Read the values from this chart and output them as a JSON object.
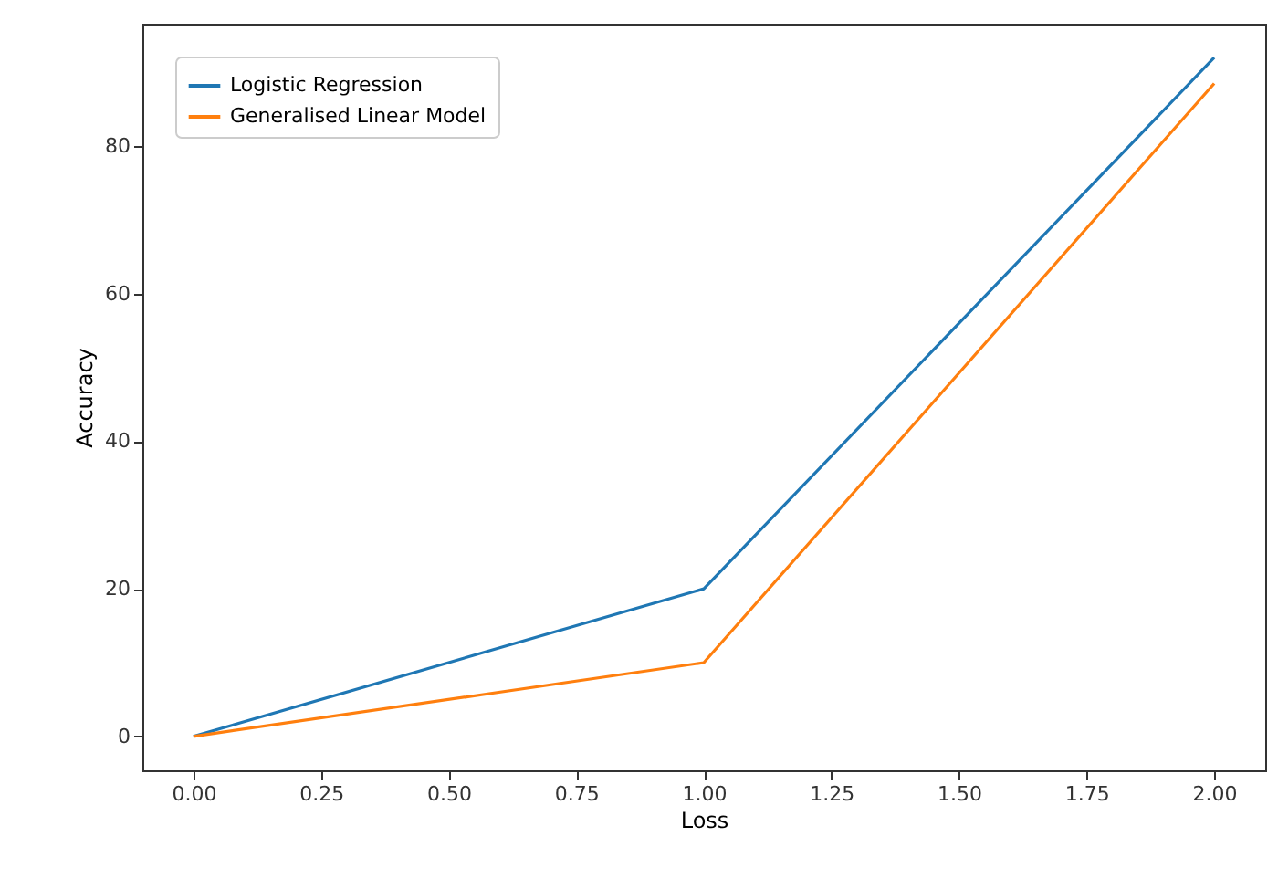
{
  "chart_data": {
    "type": "line",
    "xlabel": "Loss",
    "ylabel": "Accuracy",
    "x": [
      0,
      1,
      2
    ],
    "series": [
      {
        "name": "Logistic Regression",
        "color": "#1f77b4",
        "values": [
          0,
          20,
          92
        ]
      },
      {
        "name": "Generalised Linear Model",
        "color": "#ff7f0e",
        "values": [
          0,
          10,
          88.5
        ]
      }
    ],
    "xlim": [
      -0.1,
      2.1
    ],
    "xticks": [
      {
        "value": 0,
        "label": "0.00"
      },
      {
        "value": 0.25,
        "label": "0.25"
      },
      {
        "value": 0.5,
        "label": "0.50"
      },
      {
        "value": 0.75,
        "label": "0.75"
      },
      {
        "value": 1,
        "label": "1.00"
      },
      {
        "value": 1.25,
        "label": "1.25"
      },
      {
        "value": 1.5,
        "label": "1.50"
      },
      {
        "value": 1.75,
        "label": "1.75"
      },
      {
        "value": 2,
        "label": "2.00"
      }
    ],
    "ylim": [
      -4.6,
      96.6
    ],
    "yticks": [
      0,
      20,
      40,
      60,
      80
    ],
    "grid": false,
    "legend": "top left",
    "marker": "none",
    "line_style": "solid"
  }
}
